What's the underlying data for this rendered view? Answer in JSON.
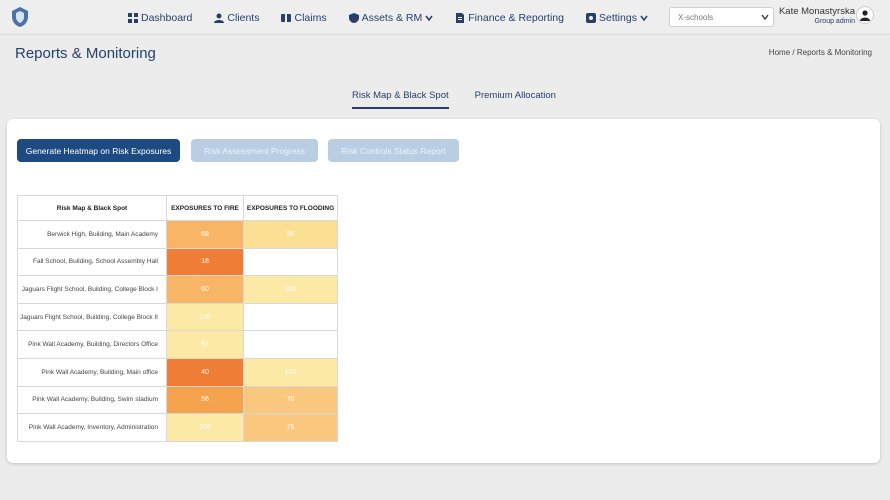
{
  "app": {
    "logo_icon": "shield-logo-icon"
  },
  "nav": {
    "items": [
      {
        "label": "Dashboard",
        "icon": "dashboard-icon",
        "has_dropdown": false
      },
      {
        "label": "Clients",
        "icon": "user-icon",
        "has_dropdown": false
      },
      {
        "label": "Claims",
        "icon": "claims-icon",
        "has_dropdown": false
      },
      {
        "label": "Assets & RM",
        "icon": "shield-icon",
        "has_dropdown": true
      },
      {
        "label": "Finance & Reporting",
        "icon": "document-icon",
        "has_dropdown": false
      },
      {
        "label": "Settings",
        "icon": "gear-icon",
        "has_dropdown": true
      }
    ]
  },
  "school_select": {
    "value": "X-schools"
  },
  "user": {
    "name": "Kate Monastyrska",
    "role": "Group admin"
  },
  "page": {
    "title": "Reports & Monitoring",
    "breadcrumb": [
      "Home",
      "/",
      "Reports & Monitoring"
    ]
  },
  "tabs": [
    {
      "label": "Risk Map & Black Spot",
      "active": true
    },
    {
      "label": "Premium Allocation",
      "active": false
    }
  ],
  "buttons": {
    "generate": "Generate Heatmap on Risk Exposures",
    "progress": "Risk Assessment Progress",
    "controls": "Risk Controls Status Report"
  },
  "heatmap": {
    "headers": [
      "Risk Map & Black Spot",
      "EXPOSURES TO FIRE",
      "EXPOSURES TO FLOODING"
    ],
    "rows": [
      {
        "label": "Berwick High, Building, Main Academy",
        "fire": "68",
        "flood": "90"
      },
      {
        "label": "Fall School, Building, School Assembly Hall",
        "fire": "18",
        "flood": ""
      },
      {
        "label": "Jaguars Flight School, Building, College Block I",
        "fire": "60",
        "flood": "100"
      },
      {
        "label": "Jaguars Flight School, Building, College Block II",
        "fire": "100",
        "flood": ""
      },
      {
        "label": "Pink Wall Academy, Building, Directors Office",
        "fire": "97",
        "flood": ""
      },
      {
        "label": "Pink Wall Academy, Building, Main office",
        "fire": "40",
        "flood": "100"
      },
      {
        "label": "Pink Wall Academy, Building, Swim stadium",
        "fire": "56",
        "flood": "70"
      },
      {
        "label": "Pink Wall Academy, Inventory, Administration",
        "fire": "100",
        "flood": "75"
      }
    ],
    "colors": {
      "very_high": "#f07d35",
      "high": "#f5a24c",
      "medium_high": "#f7b565",
      "medium": "#f9c77d",
      "low": "#fbe093",
      "very_low": "#fde9a6",
      "empty": "#ffffff"
    }
  },
  "colors": {
    "brand": "#27406b",
    "primary_button": "#1e4a82",
    "disabled_button": "#b9cde3"
  }
}
